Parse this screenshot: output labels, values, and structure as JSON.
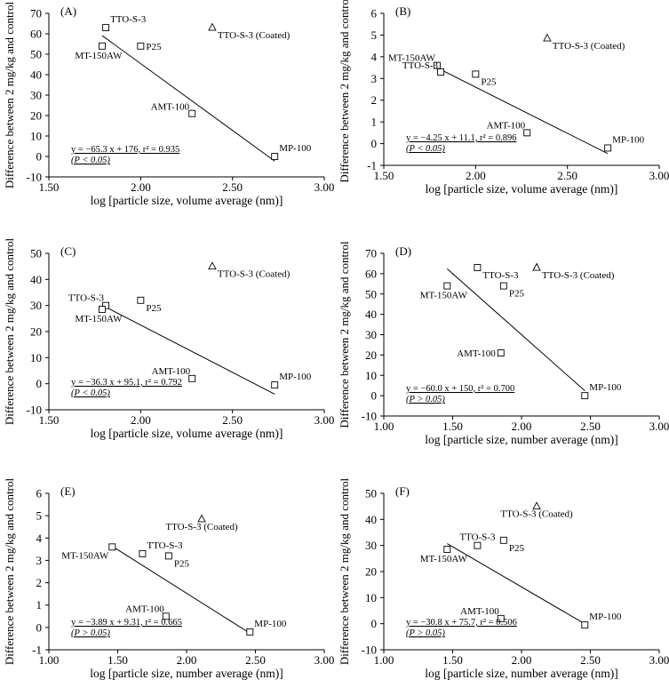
{
  "figure": {
    "background": "#ffffff",
    "ink_color": "#000000"
  },
  "chart_data": [
    {
      "panel": "(A)",
      "type": "scatter",
      "xlabel": "log [particle size, volume average (nm)]",
      "ylabel": "Difference between 2 mg/kg and control",
      "xlim": [
        1.5,
        3.0
      ],
      "ylim": [
        -10,
        70
      ],
      "xticks": [
        1.5,
        2.0,
        2.5,
        3.0
      ],
      "xtick_labels": [
        "1.50",
        "2.00",
        "2.50",
        "3.00"
      ],
      "yticks": [
        -10,
        0,
        10,
        20,
        30,
        40,
        50,
        60,
        70
      ],
      "ytick_labels": [
        "-10",
        "0",
        "10",
        "20",
        "30",
        "40",
        "50",
        "60",
        "70"
      ],
      "points": [
        {
          "label": "TTO-S-3",
          "x": 1.81,
          "y": 63,
          "marker": "square",
          "label_pos": "upper-right"
        },
        {
          "label": "MT-150AW",
          "x": 1.79,
          "y": 54,
          "marker": "square",
          "label_pos": "below"
        },
        {
          "label": "P25",
          "x": 2.0,
          "y": 54,
          "marker": "square",
          "label_pos": "right"
        },
        {
          "label": "AMT-100",
          "x": 2.28,
          "y": 21,
          "marker": "square",
          "label_pos": "lower-left"
        },
        {
          "label": "MP-100",
          "x": 2.73,
          "y": 0,
          "marker": "square",
          "label_pos": "upper-right"
        },
        {
          "label": "TTO-S-3 (Coated)",
          "x": 2.39,
          "y": 63,
          "marker": "triangle",
          "label_pos": "lower-right"
        }
      ],
      "fit": {
        "x": [
          1.79,
          2.73
        ]
      },
      "equation": "y = −65.3 x + 176, r² = 0.935",
      "pvalue": "(P < 0.05)"
    },
    {
      "panel": "(B)",
      "type": "scatter",
      "xlabel": "log [particle size, volume average (nm)]",
      "ylabel": "Difference between 2 mg/kg and control",
      "xlim": [
        1.5,
        3.0
      ],
      "ylim": [
        -1,
        6
      ],
      "xticks": [
        1.5,
        2.0,
        2.5,
        3.0
      ],
      "xtick_labels": [
        "1.50",
        "2.00",
        "2.50",
        "3.00"
      ],
      "yticks": [
        -1,
        0,
        1,
        2,
        3,
        4,
        5,
        6
      ],
      "ytick_labels": [
        "-1",
        "0",
        "1",
        "2",
        "3",
        "4",
        "5",
        "6"
      ],
      "points": [
        {
          "label": "MT-150AW",
          "x": 1.79,
          "y": 3.6,
          "marker": "square",
          "label_pos": "upper-left"
        },
        {
          "label": "TTO-S-3",
          "x": 1.81,
          "y": 3.3,
          "marker": "square",
          "label_pos": "lower-left"
        },
        {
          "label": "P25",
          "x": 2.0,
          "y": 3.2,
          "marker": "square",
          "label_pos": "lower-right"
        },
        {
          "label": "AMT-100",
          "x": 2.28,
          "y": 0.5,
          "marker": "square",
          "label_pos": "upper-left"
        },
        {
          "label": "MP-100",
          "x": 2.72,
          "y": -0.2,
          "marker": "square",
          "label_pos": "upper-right"
        },
        {
          "label": "TTO-S-3 (Coated)",
          "x": 2.39,
          "y": 4.85,
          "marker": "triangle",
          "label_pos": "lower-right"
        }
      ],
      "fit": {
        "x": [
          1.79,
          2.72
        ]
      },
      "equation": "y = −4.25 x + 11.1, r² = 0.896",
      "pvalue": "(P < 0.05)"
    },
    {
      "panel": "(C)",
      "type": "scatter",
      "xlabel": "log [particle size, volume average (nm)]",
      "ylabel": "Difference between 2 mg/kg and control",
      "xlim": [
        1.5,
        3.0
      ],
      "ylim": [
        -10,
        50
      ],
      "xticks": [
        1.5,
        2.0,
        2.5,
        3.0
      ],
      "xtick_labels": [
        "1.50",
        "2.00",
        "2.50",
        "3.00"
      ],
      "yticks": [
        -10,
        0,
        10,
        20,
        30,
        40,
        50
      ],
      "ytick_labels": [
        "-10",
        "0",
        "10",
        "20",
        "30",
        "40",
        "50"
      ],
      "points": [
        {
          "label": "TTO-S-3",
          "x": 1.81,
          "y": 30,
          "marker": "square",
          "label_pos": "upper-left"
        },
        {
          "label": "MT-150AW",
          "x": 1.79,
          "y": 28.5,
          "marker": "square",
          "label_pos": "below"
        },
        {
          "label": "P25",
          "x": 2.0,
          "y": 32,
          "marker": "square",
          "label_pos": "lower-right"
        },
        {
          "label": "AMT-100",
          "x": 2.28,
          "y": 2,
          "marker": "square",
          "label_pos": "upper-left"
        },
        {
          "label": "MP-100",
          "x": 2.73,
          "y": -0.5,
          "marker": "square",
          "label_pos": "upper-right"
        },
        {
          "label": "TTO-S-3 (Coated)",
          "x": 2.39,
          "y": 45,
          "marker": "triangle",
          "label_pos": "lower-right"
        }
      ],
      "fit": {
        "x": [
          1.79,
          2.73
        ]
      },
      "equation": "y = −36.3 x + 95.1, r² = 0.792",
      "pvalue": "(P < 0.05)"
    },
    {
      "panel": "(D)",
      "type": "scatter",
      "xlabel": "log [particle size, number average (nm)]",
      "ylabel": "Difference between 2 mg/kg and control",
      "xlim": [
        1.0,
        3.0
      ],
      "ylim": [
        -10,
        70
      ],
      "xticks": [
        1.0,
        1.5,
        2.0,
        2.5,
        3.0
      ],
      "xtick_labels": [
        "1.00",
        "1.50",
        "2.00",
        "2.50",
        "3.00"
      ],
      "yticks": [
        -10,
        0,
        10,
        20,
        30,
        40,
        50,
        60,
        70
      ],
      "ytick_labels": [
        "-10",
        "0",
        "10",
        "20",
        "30",
        "40",
        "50",
        "60",
        "70"
      ],
      "points": [
        {
          "label": "TTO-S-3",
          "x": 1.68,
          "y": 63,
          "marker": "square",
          "label_pos": "lower-right"
        },
        {
          "label": "MT-150AW",
          "x": 1.46,
          "y": 54,
          "marker": "square",
          "label_pos": "below"
        },
        {
          "label": "P25",
          "x": 1.87,
          "y": 54,
          "marker": "square",
          "label_pos": "lower-right"
        },
        {
          "label": "AMT-100",
          "x": 1.85,
          "y": 21,
          "marker": "square",
          "label_pos": "left"
        },
        {
          "label": "MP-100",
          "x": 2.46,
          "y": 0,
          "marker": "square",
          "label_pos": "upper-right"
        },
        {
          "label": "TTO-S-3 (Coated)",
          "x": 2.11,
          "y": 63,
          "marker": "triangle",
          "label_pos": "lower-right"
        }
      ],
      "fit": {
        "x": [
          1.46,
          2.46
        ]
      },
      "equation": "y = −60.0 x + 150, r² = 0.700",
      "pvalue": "(P > 0.05)"
    },
    {
      "panel": "(E)",
      "type": "scatter",
      "xlabel": "log [particle size, number average (nm)]",
      "ylabel": "Difference between 2 mg/kg and control",
      "xlim": [
        1.0,
        3.0
      ],
      "ylim": [
        -1,
        6
      ],
      "xticks": [
        1.0,
        1.5,
        2.0,
        2.5,
        3.0
      ],
      "xtick_labels": [
        "1.00",
        "1.50",
        "2.00",
        "2.50",
        "3.00"
      ],
      "yticks": [
        -1,
        0,
        1,
        2,
        3,
        4,
        5,
        6
      ],
      "ytick_labels": [
        "-1",
        "0",
        "1",
        "2",
        "3",
        "4",
        "5",
        "6"
      ],
      "points": [
        {
          "label": "MT-150AW",
          "x": 1.46,
          "y": 3.6,
          "marker": "square",
          "label_pos": "below-left"
        },
        {
          "label": "TTO-S-3",
          "x": 1.68,
          "y": 3.3,
          "marker": "square",
          "label_pos": "upper-right"
        },
        {
          "label": "P25",
          "x": 1.87,
          "y": 3.2,
          "marker": "square",
          "label_pos": "lower-right"
        },
        {
          "label": "AMT-100",
          "x": 1.85,
          "y": 0.5,
          "marker": "square",
          "label_pos": "upper-left"
        },
        {
          "label": "MP-100",
          "x": 2.46,
          "y": -0.2,
          "marker": "square",
          "label_pos": "upper-right"
        },
        {
          "label": "TTO-S-3 (Coated)",
          "x": 2.11,
          "y": 4.85,
          "marker": "triangle",
          "label_pos": "lower-center"
        }
      ],
      "fit": {
        "x": [
          1.46,
          2.46
        ]
      },
      "equation": "y = −3.89 x + 9.31, r² = 0.665",
      "pvalue": "(P > 0.05)"
    },
    {
      "panel": "(F)",
      "type": "scatter",
      "xlabel": "log [particle size, number average (nm)]",
      "ylabel": "Difference between 2 mg/kg and control",
      "xlim": [
        1.0,
        3.0
      ],
      "ylim": [
        -10,
        50
      ],
      "xticks": [
        1.0,
        1.5,
        2.0,
        2.5,
        3.0
      ],
      "xtick_labels": [
        "1.00",
        "1.50",
        "2.00",
        "2.50",
        "3.00"
      ],
      "yticks": [
        -10,
        0,
        10,
        20,
        30,
        40,
        50
      ],
      "ytick_labels": [
        "-10",
        "0",
        "10",
        "20",
        "30",
        "40",
        "50"
      ],
      "points": [
        {
          "label": "TTO-S-3",
          "x": 1.68,
          "y": 30,
          "marker": "square",
          "label_pos": "upper-center"
        },
        {
          "label": "MT-150AW",
          "x": 1.46,
          "y": 28.5,
          "marker": "square",
          "label_pos": "below"
        },
        {
          "label": "P25",
          "x": 1.87,
          "y": 32,
          "marker": "square",
          "label_pos": "lower-right"
        },
        {
          "label": "AMT-100",
          "x": 1.85,
          "y": 2,
          "marker": "square",
          "label_pos": "upper-left"
        },
        {
          "label": "MP-100",
          "x": 2.46,
          "y": -0.5,
          "marker": "square",
          "label_pos": "upper-right"
        },
        {
          "label": "TTO-S-3 (Coated)",
          "x": 2.11,
          "y": 45,
          "marker": "triangle",
          "label_pos": "lower-center"
        }
      ],
      "fit": {
        "x": [
          1.46,
          2.46
        ]
      },
      "equation": "y = −30.8 x + 75.7, r² = 0.506",
      "pvalue": "(P > 0.05)"
    }
  ]
}
